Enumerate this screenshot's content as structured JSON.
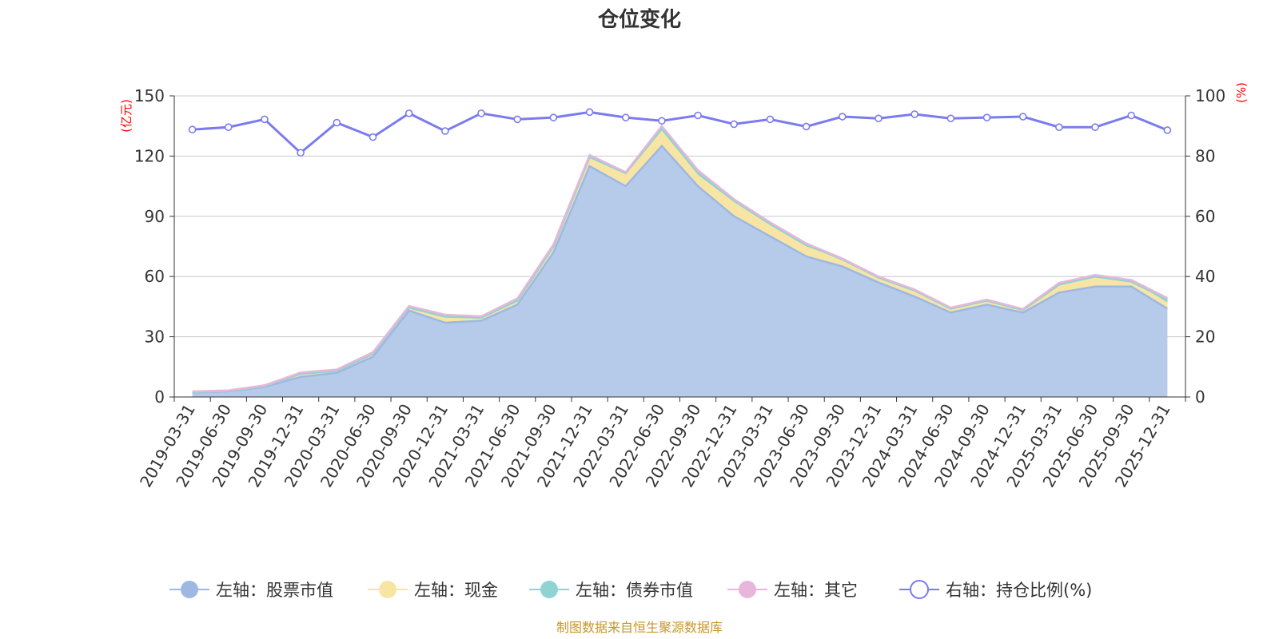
{
  "title": "仓位变化",
  "source": "制图数据来自恒生聚源数据库",
  "colors": {
    "stock": "#9db8e3",
    "stock_fill": "#b6cbea",
    "cash": "#f8e5a3",
    "bond": "#8fd3d3",
    "other": "#e8b6da",
    "ratio": "#7b7bef",
    "grid": "#c8c8c8",
    "axis": "#333333"
  },
  "chart_data": {
    "type": "area",
    "title": "仓位变化",
    "x": [
      "2019-03-31",
      "2019-06-30",
      "2019-09-30",
      "2019-12-31",
      "2020-03-31",
      "2020-06-30",
      "2020-09-30",
      "2020-12-31",
      "2021-03-31",
      "2021-06-30",
      "2021-09-30",
      "2021-12-31",
      "2022-03-31",
      "2022-06-30",
      "2022-09-30",
      "2022-12-31",
      "2023-03-31",
      "2023-06-30",
      "2023-09-30",
      "2023-12-31",
      "2024-03-31",
      "2024-06-30",
      "2024-09-30",
      "2024-12-31",
      "2025-03-31",
      "2025-06-30",
      "2025-09-30",
      "2025-12-31"
    ],
    "left_axis": {
      "unit": "(亿元)",
      "ylim": [
        0,
        150
      ],
      "ticks": [
        0,
        30,
        60,
        90,
        120,
        150
      ]
    },
    "right_axis": {
      "unit": "(%)",
      "ylim": [
        0,
        100
      ],
      "ticks": [
        0,
        20,
        40,
        60,
        80,
        100
      ]
    },
    "stacked": true,
    "grid": true,
    "legend_position": "bottom",
    "series": [
      {
        "name": "左轴：股票市值",
        "axis": "left",
        "type": "area",
        "values": [
          2.2,
          2.8,
          5,
          10,
          12,
          20,
          43,
          37,
          38,
          46,
          72,
          115,
          105,
          125,
          105,
          90,
          80,
          70,
          65,
          57,
          50,
          42,
          46,
          42,
          52,
          55,
          55,
          44
        ]
      },
      {
        "name": "左轴：现金",
        "axis": "left",
        "type": "area",
        "values": [
          0.3,
          0.3,
          0.5,
          1.5,
          1,
          1.5,
          1.5,
          3,
          1.5,
          2,
          3,
          4.5,
          6.5,
          7,
          5,
          6.5,
          5,
          4.5,
          3,
          2.5,
          3,
          2,
          2,
          1.3,
          4,
          5,
          2.5,
          2.5
        ]
      },
      {
        "name": "左轴：债券市值",
        "axis": "left",
        "type": "area",
        "values": [
          0,
          0,
          0,
          0,
          0,
          0,
          0,
          0,
          0,
          0,
          0,
          0,
          0,
          1.5,
          1.5,
          1.5,
          1.5,
          1.5,
          0.5,
          0,
          0,
          0,
          0,
          0,
          0,
          0,
          0,
          2
        ]
      },
      {
        "name": "左轴：其它",
        "axis": "left",
        "type": "area",
        "values": [
          0.3,
          0.2,
          0.3,
          0.7,
          0.7,
          0.8,
          0.8,
          1,
          0.7,
          1,
          1,
          1,
          0.5,
          1.5,
          1.5,
          0.5,
          0.5,
          0.5,
          0.5,
          0.5,
          0.5,
          0.5,
          0.5,
          0.5,
          0.8,
          0.8,
          0.8,
          0.8
        ]
      },
      {
        "name": "右轴：持仓比例(%)",
        "axis": "right",
        "type": "line",
        "values": [
          88.8,
          89.6,
          92.2,
          81.1,
          91.1,
          86.3,
          94.2,
          88.3,
          94.2,
          92.2,
          92.8,
          94.6,
          92.8,
          91.7,
          93.5,
          90.6,
          92.2,
          89.8,
          93.1,
          92.5,
          93.9,
          92.5,
          92.8,
          93.1,
          89.6,
          89.6,
          93.5,
          88.6
        ]
      }
    ]
  }
}
